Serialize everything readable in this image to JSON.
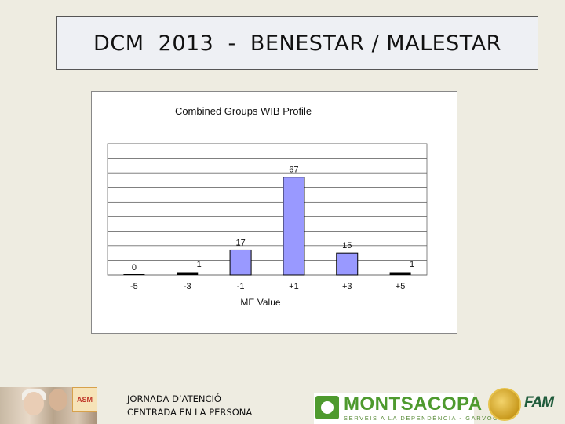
{
  "slide": {
    "title": "DCM  2013  -  BENESTAR / MALESTAR",
    "footer_lines": [
      "JORNADA D’ATENCIÓ",
      "CENTRADA EN LA PERSONA"
    ],
    "logos": {
      "asm": "ASM",
      "montsacopa": "MONTSACOPA",
      "montsacopa_sub": "SERVEIS A LA DEPENDÈNCIA - GARVOC",
      "fam": "FAM"
    }
  },
  "chart_data": {
    "type": "bar",
    "title": "Combined Groups WIB Profile",
    "xlabel": "ME Value",
    "ylabel": "",
    "categories": [
      "-5",
      "-3",
      "-1",
      "+1",
      "+3",
      "+5"
    ],
    "values": [
      0,
      1,
      17,
      67,
      15,
      1
    ],
    "data_labels": [
      "0",
      "1",
      "17",
      "67",
      "15",
      "1"
    ],
    "ylim": [
      0,
      90
    ],
    "grid": true,
    "legend": "none",
    "colors": {
      "bar_fill": "#9999ff",
      "bar_stroke": "#000000",
      "zero_bar": "#000000",
      "grid": "#000000"
    }
  }
}
